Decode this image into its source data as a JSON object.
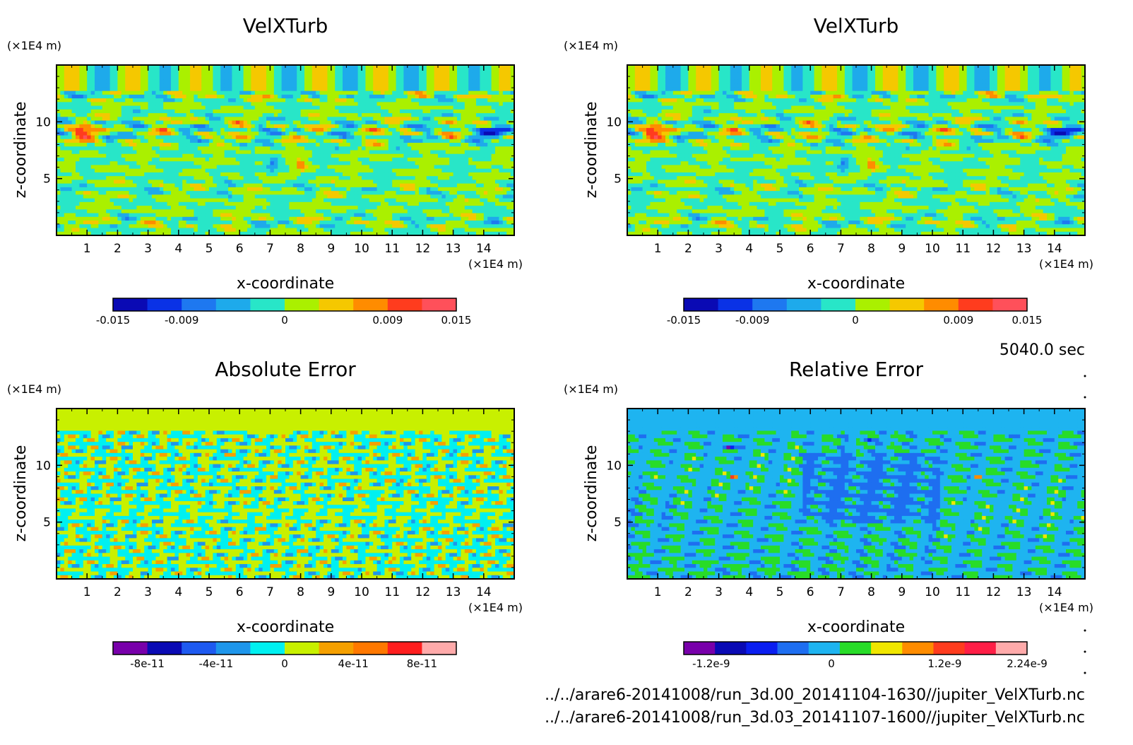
{
  "time_label": "5040.0 sec",
  "files": [
    "../../arare6-20141008/run_3d.00_20141104-1630//jupiter_VelXTurb.nc",
    "../../arare6-20141008/run_3d.03_20141107-1600//jupiter_VelXTurb.nc"
  ],
  "chart_data": [
    {
      "type": "heatmap",
      "title": "VelXTurb",
      "xlabel": "x-coordinate",
      "ylabel": "z-coordinate",
      "x_unit": "(×1E4 m)",
      "y_unit": "(×1E4 m)",
      "xlim": [
        0,
        15
      ],
      "ylim": [
        0,
        15
      ],
      "x_ticks": [
        1,
        2,
        3,
        4,
        5,
        6,
        7,
        8,
        9,
        10,
        11,
        12,
        13,
        14
      ],
      "y_ticks": [
        5,
        10
      ],
      "colorbar": {
        "colors": [
          "#0a0ab4",
          "#0a32e6",
          "#1e78f0",
          "#1eaaeb",
          "#28e6c8",
          "#aaf000",
          "#f5c800",
          "#ff8c00",
          "#ff3c1e",
          "#ff505a"
        ],
        "tick_labels": [
          "-0.015",
          "-0.009",
          "0",
          "0.009",
          "0.015"
        ],
        "tick_fractions": [
          0,
          0.2,
          0.5,
          0.8,
          1
        ]
      },
      "field": "vel"
    },
    {
      "type": "heatmap",
      "title": "VelXTurb",
      "xlabel": "x-coordinate",
      "ylabel": "z-coordinate",
      "x_unit": "(×1E4 m)",
      "y_unit": "(×1E4 m)",
      "xlim": [
        0,
        15
      ],
      "ylim": [
        0,
        15
      ],
      "x_ticks": [
        1,
        2,
        3,
        4,
        5,
        6,
        7,
        8,
        9,
        10,
        11,
        12,
        13,
        14
      ],
      "y_ticks": [
        5,
        10
      ],
      "colorbar": {
        "colors": [
          "#0a0ab4",
          "#0a32e6",
          "#1e78f0",
          "#1eaaeb",
          "#28e6c8",
          "#aaf000",
          "#f5c800",
          "#ff8c00",
          "#ff3c1e",
          "#ff505a"
        ],
        "tick_labels": [
          "-0.015",
          "-0.009",
          "0",
          "0.009",
          "0.015"
        ],
        "tick_fractions": [
          0,
          0.2,
          0.5,
          0.8,
          1
        ]
      },
      "field": "vel"
    },
    {
      "type": "heatmap",
      "title": "Absolute Error",
      "xlabel": "x-coordinate",
      "ylabel": "z-coordinate",
      "x_unit": "(×1E4 m)",
      "y_unit": "(×1E4 m)",
      "xlim": [
        0,
        15
      ],
      "ylim": [
        0,
        15
      ],
      "x_ticks": [
        1,
        2,
        3,
        4,
        5,
        6,
        7,
        8,
        9,
        10,
        11,
        12,
        13,
        14
      ],
      "y_ticks": [
        5,
        10
      ],
      "colorbar": {
        "colors": [
          "#7800aa",
          "#0a0ab4",
          "#1e5af0",
          "#1e96eb",
          "#00f0f0",
          "#c8f000",
          "#f5a000",
          "#ff7800",
          "#ff1e1e",
          "#ffaaaa"
        ],
        "tick_labels": [
          "-8e-11",
          "-4e-11",
          "0",
          "4e-11",
          "8e-11"
        ],
        "tick_fractions": [
          0.1,
          0.3,
          0.5,
          0.7,
          0.9
        ]
      },
      "field": "abs"
    },
    {
      "type": "heatmap",
      "title": "Relative Error",
      "xlabel": "x-coordinate",
      "ylabel": "z-coordinate",
      "x_unit": "(×1E4 m)",
      "y_unit": "(×1E4 m)",
      "xlim": [
        0,
        15
      ],
      "ylim": [
        0,
        15
      ],
      "x_ticks": [
        1,
        2,
        3,
        4,
        5,
        6,
        7,
        8,
        9,
        10,
        11,
        12,
        13,
        14
      ],
      "y_ticks": [
        5,
        10
      ],
      "colorbar": {
        "colors": [
          "#7800aa",
          "#0a0ab4",
          "#0a1ef0",
          "#1e6ef0",
          "#1eb4f0",
          "#28dc28",
          "#f0e600",
          "#ff8c00",
          "#ff3c1e",
          "#ff1e46",
          "#ffaaaa"
        ],
        "tick_labels": [
          "-1.2e-9",
          "0",
          "1.2e-9",
          "2.24e-9"
        ],
        "tick_fractions": [
          0.08,
          0.43,
          0.76,
          1
        ]
      },
      "field": "rel"
    }
  ]
}
